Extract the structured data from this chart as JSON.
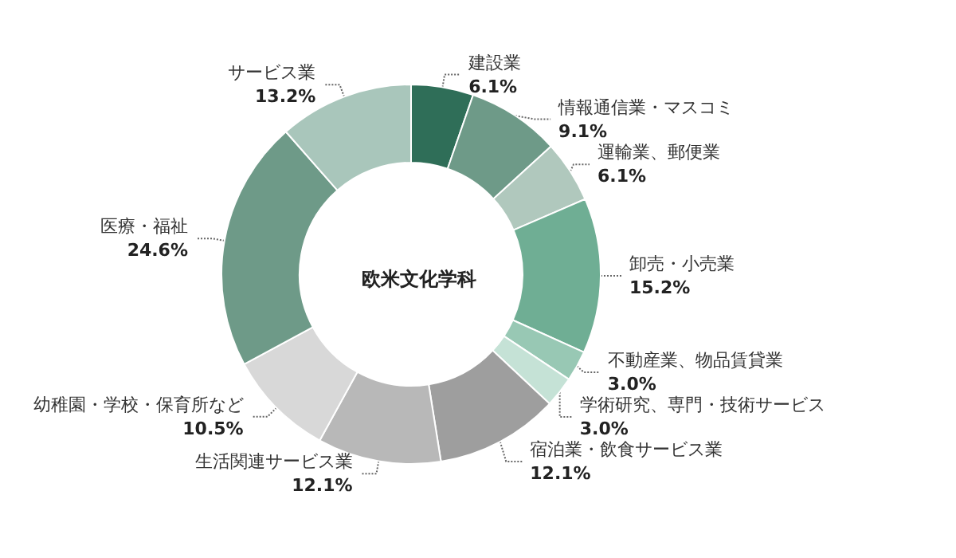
{
  "chart_data": {
    "type": "donut",
    "title": "欧米文化学科",
    "categories": [
      "建設業",
      "情報通信業・マスコミ",
      "運輸業、郵便業",
      "卸売・小売業",
      "不動産業、物品賃貸業",
      "学術研究、専門・技術サービス",
      "宿泊業・飲食サービス業",
      "生活関連サービス業",
      "幼稚園・学校・保育所など",
      "医療・福祉",
      "サービス業"
    ],
    "values": [
      6.1,
      9.1,
      6.1,
      15.2,
      3.0,
      3.0,
      12.1,
      12.1,
      10.5,
      24.6,
      13.2
    ],
    "value_labels": [
      "6.1%",
      "9.1%",
      "6.1%",
      "15.2%",
      "3.0%",
      "3.0%",
      "12.1%",
      "12.1%",
      "10.5%",
      "24.6%",
      "13.2%"
    ],
    "colors": [
      "#2f6e58",
      "#6e9a88",
      "#b0c8bd",
      "#6fae94",
      "#98c8b4",
      "#c5e2d6",
      "#9e9e9e",
      "#b8b8b8",
      "#d8d8d8",
      "#6e9a88",
      "#a9c6bb"
    ]
  }
}
